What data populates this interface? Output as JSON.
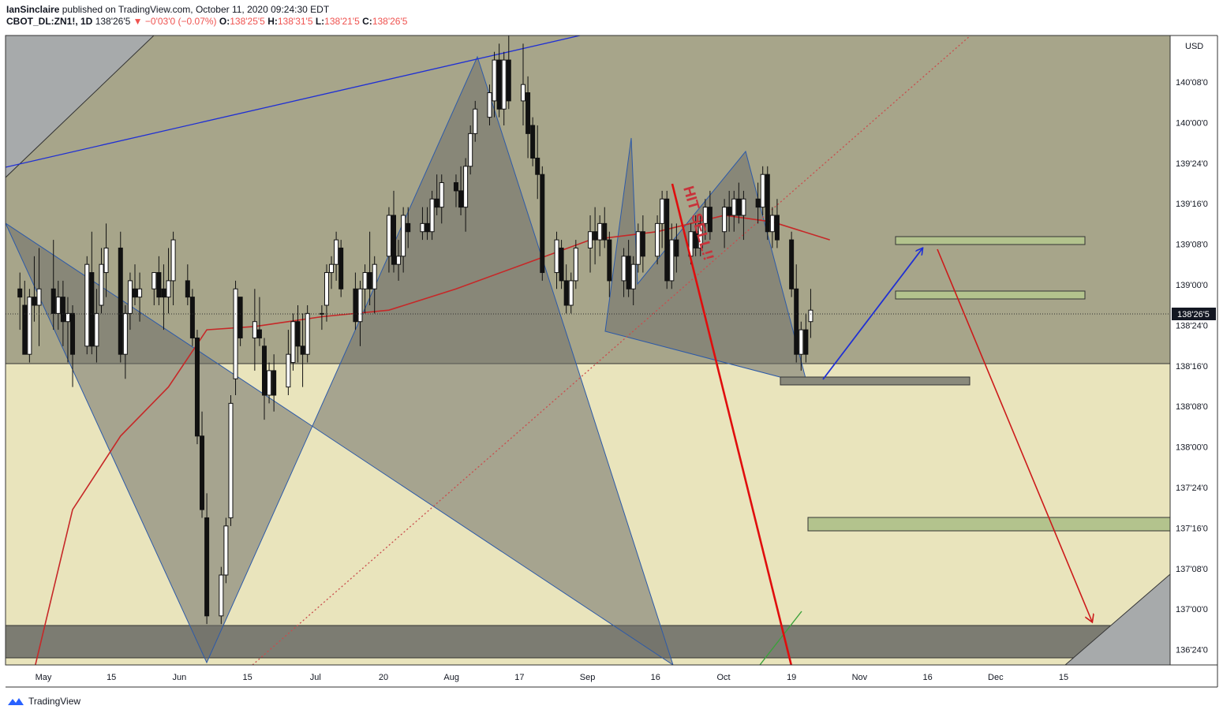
{
  "header": {
    "author": "IanSinclaire",
    "published_text": "published on TradingView.com, October 11, 2020 09:24:30 EDT",
    "symbol": "CBOT_DL:ZN1!, 1D",
    "last": "138'26'5",
    "change_arrow": "▼",
    "change": "−0'03'0 (−0.07%)",
    "o_label": "O:",
    "o_value": "138'25'5",
    "h_label": "H:",
    "h_value": "138'31'5",
    "l_label": "L:",
    "l_value": "138'21'5",
    "c_label": "C:",
    "c_value": "138'26'5"
  },
  "footer": {
    "brand": "TradingView"
  },
  "chart_data": {
    "type": "candlestick",
    "currency": "USD",
    "y_axis_ticks": [
      "136'24'0",
      "137'00'0",
      "137'08'0",
      "137'16'0",
      "137'24'0",
      "138'00'0",
      "138'08'0",
      "138'16'0",
      "138'24'0",
      "139'00'0",
      "139'08'0",
      "139'16'0",
      "139'24'0",
      "140'00'0",
      "140'08'0"
    ],
    "x_axis_ticks": [
      "May",
      "15",
      "Jun",
      "15",
      "Jul",
      "20",
      "Aug",
      "17",
      "Sep",
      "16",
      "Oct",
      "19",
      "Nov",
      "16",
      "Dec",
      "15"
    ],
    "last_price_label": "138'26'5",
    "ylim": [
      136.65,
      140.5
    ],
    "xlim": [
      "2020-04-24",
      "2020-12-23"
    ],
    "annotation_text": "HIT SELL!!",
    "moving_average": {
      "color": "#c62828",
      "dates": [
        "2020-04-29",
        "2020-05-08",
        "2020-05-18",
        "2020-05-28",
        "2020-06-05",
        "2020-06-15",
        "2020-06-29",
        "2020-07-13",
        "2020-07-27",
        "2020-08-10",
        "2020-08-24",
        "2020-09-07",
        "2020-09-21",
        "2020-10-01",
        "2020-10-13"
      ],
      "values": [
        136.5,
        137.6,
        138.05,
        138.35,
        138.7,
        138.72,
        138.78,
        138.82,
        138.95,
        139.1,
        139.25,
        139.3,
        139.4,
        139.36,
        139.25
      ]
    },
    "candles": [
      {
        "d": "2020-04-27",
        "o": 138.95,
        "h": 139.05,
        "l": 138.7,
        "c": 138.9
      },
      {
        "d": "2020-04-28",
        "o": 138.85,
        "h": 139.0,
        "l": 138.55,
        "c": 138.55
      },
      {
        "d": "2020-04-29",
        "o": 138.55,
        "h": 138.95,
        "l": 138.5,
        "c": 138.9
      },
      {
        "d": "2020-04-30",
        "o": 138.9,
        "h": 139.15,
        "l": 138.75,
        "c": 138.85
      },
      {
        "d": "2020-05-01",
        "o": 138.85,
        "h": 139.2,
        "l": 138.6,
        "c": 138.95
      },
      {
        "d": "2020-05-04",
        "o": 138.95,
        "h": 139.25,
        "l": 138.7,
        "c": 138.8
      },
      {
        "d": "2020-05-05",
        "o": 138.8,
        "h": 139.0,
        "l": 138.7,
        "c": 138.9
      },
      {
        "d": "2020-05-06",
        "o": 138.9,
        "h": 139.0,
        "l": 138.6,
        "c": 138.75
      },
      {
        "d": "2020-05-07",
        "o": 138.75,
        "h": 138.9,
        "l": 138.5,
        "c": 138.8
      },
      {
        "d": "2020-05-08",
        "o": 138.8,
        "h": 138.85,
        "l": 138.35,
        "c": 138.55
      },
      {
        "d": "2020-05-11",
        "o": 138.6,
        "h": 139.15,
        "l": 138.55,
        "c": 139.1
      },
      {
        "d": "2020-05-12",
        "o": 139.05,
        "h": 139.3,
        "l": 138.55,
        "c": 138.6
      },
      {
        "d": "2020-05-13",
        "o": 138.6,
        "h": 138.95,
        "l": 138.5,
        "c": 138.8
      },
      {
        "d": "2020-05-14",
        "o": 138.85,
        "h": 139.2,
        "l": 138.8,
        "c": 139.1
      },
      {
        "d": "2020-05-15",
        "o": 139.05,
        "h": 139.35,
        "l": 138.9,
        "c": 139.2
      },
      {
        "d": "2020-05-18",
        "o": 139.2,
        "h": 139.3,
        "l": 138.5,
        "c": 138.55
      },
      {
        "d": "2020-05-19",
        "o": 138.55,
        "h": 138.85,
        "l": 138.4,
        "c": 138.8
      },
      {
        "d": "2020-05-20",
        "o": 138.8,
        "h": 139.05,
        "l": 138.7,
        "c": 139.0
      },
      {
        "d": "2020-05-21",
        "o": 138.95,
        "h": 139.1,
        "l": 138.85,
        "c": 138.9
      },
      {
        "d": "2020-05-22",
        "o": 138.9,
        "h": 139.05,
        "l": 138.75,
        "c": 138.95
      },
      {
        "d": "2020-05-25",
        "o": 138.95,
        "h": 139.05,
        "l": 138.85,
        "c": 139.05
      },
      {
        "d": "2020-05-26",
        "o": 139.05,
        "h": 139.15,
        "l": 138.85,
        "c": 138.9
      },
      {
        "d": "2020-05-27",
        "o": 138.95,
        "h": 139.1,
        "l": 138.7,
        "c": 138.9
      },
      {
        "d": "2020-05-28",
        "o": 138.9,
        "h": 139.2,
        "l": 138.8,
        "c": 139.0
      },
      {
        "d": "2020-05-29",
        "o": 139.0,
        "h": 139.3,
        "l": 138.85,
        "c": 139.25
      },
      {
        "d": "2020-06-01",
        "o": 139.0,
        "h": 139.1,
        "l": 138.85,
        "c": 138.9
      },
      {
        "d": "2020-06-02",
        "o": 138.9,
        "h": 138.95,
        "l": 138.6,
        "c": 138.65
      },
      {
        "d": "2020-06-03",
        "o": 138.65,
        "h": 138.7,
        "l": 138.0,
        "c": 138.05
      },
      {
        "d": "2020-06-04",
        "o": 138.05,
        "h": 138.2,
        "l": 137.55,
        "c": 137.6
      },
      {
        "d": "2020-06-05",
        "o": 137.55,
        "h": 137.7,
        "l": 136.9,
        "c": 136.95
      },
      {
        "d": "2020-06-08",
        "o": 136.95,
        "h": 137.25,
        "l": 136.9,
        "c": 137.2
      },
      {
        "d": "2020-06-09",
        "o": 137.2,
        "h": 137.55,
        "l": 137.15,
        "c": 137.5
      },
      {
        "d": "2020-06-10",
        "o": 137.55,
        "h": 138.3,
        "l": 137.5,
        "c": 138.25
      },
      {
        "d": "2020-06-11",
        "o": 138.4,
        "h": 139.0,
        "l": 138.3,
        "c": 138.95
      },
      {
        "d": "2020-06-12",
        "o": 138.9,
        "h": 138.9,
        "l": 138.6,
        "c": 138.65
      },
      {
        "d": "2020-06-15",
        "o": 138.65,
        "h": 138.95,
        "l": 138.45,
        "c": 138.75
      },
      {
        "d": "2020-06-16",
        "o": 138.7,
        "h": 138.9,
        "l": 138.6,
        "c": 138.65
      },
      {
        "d": "2020-06-17",
        "o": 138.6,
        "h": 138.65,
        "l": 138.15,
        "c": 138.3
      },
      {
        "d": "2020-06-18",
        "o": 138.3,
        "h": 138.5,
        "l": 138.25,
        "c": 138.45
      },
      {
        "d": "2020-06-19",
        "o": 138.45,
        "h": 138.55,
        "l": 138.2,
        "c": 138.3
      },
      {
        "d": "2020-06-22",
        "o": 138.35,
        "h": 138.7,
        "l": 138.3,
        "c": 138.55
      },
      {
        "d": "2020-06-23",
        "o": 138.5,
        "h": 138.8,
        "l": 138.45,
        "c": 138.75
      },
      {
        "d": "2020-06-24",
        "o": 138.75,
        "h": 138.85,
        "l": 138.5,
        "c": 138.6
      },
      {
        "d": "2020-06-25",
        "o": 138.6,
        "h": 138.8,
        "l": 138.35,
        "c": 138.55
      },
      {
        "d": "2020-06-26",
        "o": 138.55,
        "h": 138.85,
        "l": 138.5,
        "c": 138.8
      },
      {
        "d": "2020-06-29",
        "o": 138.8,
        "h": 138.85,
        "l": 138.7,
        "c": 138.8
      },
      {
        "d": "2020-06-30",
        "o": 138.85,
        "h": 139.1,
        "l": 138.75,
        "c": 139.05
      },
      {
        "d": "2020-07-01",
        "o": 139.05,
        "h": 139.15,
        "l": 138.95,
        "c": 139.1
      },
      {
        "d": "2020-07-02",
        "o": 139.1,
        "h": 139.3,
        "l": 139.0,
        "c": 139.25
      },
      {
        "d": "2020-07-03",
        "o": 139.2,
        "h": 139.25,
        "l": 138.9,
        "c": 138.95
      },
      {
        "d": "2020-07-06",
        "o": 138.95,
        "h": 139.05,
        "l": 138.7,
        "c": 138.75
      },
      {
        "d": "2020-07-07",
        "o": 138.75,
        "h": 139.0,
        "l": 138.6,
        "c": 138.95
      },
      {
        "d": "2020-07-08",
        "o": 138.95,
        "h": 139.1,
        "l": 138.8,
        "c": 139.05
      },
      {
        "d": "2020-07-09",
        "o": 139.05,
        "h": 139.3,
        "l": 138.85,
        "c": 138.95
      },
      {
        "d": "2020-07-10",
        "o": 138.95,
        "h": 139.15,
        "l": 138.8,
        "c": 139.1
      },
      {
        "d": "2020-07-13",
        "o": 139.15,
        "h": 139.45,
        "l": 139.05,
        "c": 139.4
      },
      {
        "d": "2020-07-14",
        "o": 139.4,
        "h": 139.55,
        "l": 139.05,
        "c": 139.1
      },
      {
        "d": "2020-07-15",
        "o": 139.1,
        "h": 139.25,
        "l": 139.0,
        "c": 139.15
      },
      {
        "d": "2020-07-16",
        "o": 139.15,
        "h": 139.45,
        "l": 139.05,
        "c": 139.4
      },
      {
        "d": "2020-07-17",
        "o": 139.35,
        "h": 139.45,
        "l": 139.2,
        "c": 139.3
      },
      {
        "d": "2020-07-20",
        "o": 139.3,
        "h": 139.45,
        "l": 139.25,
        "c": 139.35
      },
      {
        "d": "2020-07-21",
        "o": 139.35,
        "h": 139.45,
        "l": 139.25,
        "c": 139.3
      },
      {
        "d": "2020-07-22",
        "o": 139.3,
        "h": 139.55,
        "l": 139.25,
        "c": 139.5
      },
      {
        "d": "2020-07-23",
        "o": 139.5,
        "h": 139.65,
        "l": 139.4,
        "c": 139.45
      },
      {
        "d": "2020-07-24",
        "o": 139.45,
        "h": 139.65,
        "l": 139.35,
        "c": 139.6
      },
      {
        "d": "2020-07-27",
        "o": 139.6,
        "h": 139.65,
        "l": 139.45,
        "c": 139.55
      },
      {
        "d": "2020-07-28",
        "o": 139.55,
        "h": 139.7,
        "l": 139.4,
        "c": 139.45
      },
      {
        "d": "2020-07-29",
        "o": 139.45,
        "h": 139.75,
        "l": 139.3,
        "c": 139.7
      },
      {
        "d": "2020-07-30",
        "o": 139.7,
        "h": 139.95,
        "l": 139.65,
        "c": 139.9
      },
      {
        "d": "2020-07-31",
        "o": 139.9,
        "h": 140.1,
        "l": 139.85,
        "c": 140.05
      },
      {
        "d": "2020-08-03",
        "o": 140.0,
        "h": 140.2,
        "l": 139.95,
        "c": 140.15
      },
      {
        "d": "2020-08-04",
        "o": 140.1,
        "h": 140.4,
        "l": 140.0,
        "c": 140.35
      },
      {
        "d": "2020-08-05",
        "o": 140.35,
        "h": 140.45,
        "l": 140.0,
        "c": 140.05
      },
      {
        "d": "2020-08-06",
        "o": 140.05,
        "h": 140.4,
        "l": 139.95,
        "c": 140.35
      },
      {
        "d": "2020-08-07",
        "o": 140.35,
        "h": 140.55,
        "l": 140.05,
        "c": 140.1
      },
      {
        "d": "2020-08-10",
        "o": 140.1,
        "h": 140.45,
        "l": 139.95,
        "c": 140.2
      },
      {
        "d": "2020-08-11",
        "o": 140.15,
        "h": 140.25,
        "l": 139.75,
        "c": 139.9
      },
      {
        "d": "2020-08-12",
        "o": 139.95,
        "h": 140.0,
        "l": 139.7,
        "c": 139.75
      },
      {
        "d": "2020-08-13",
        "o": 139.75,
        "h": 139.95,
        "l": 139.5,
        "c": 139.65
      },
      {
        "d": "2020-08-14",
        "o": 139.65,
        "h": 139.7,
        "l": 139.0,
        "c": 139.05
      },
      {
        "d": "2020-08-17",
        "o": 139.05,
        "h": 139.3,
        "l": 138.95,
        "c": 139.25
      },
      {
        "d": "2020-08-18",
        "o": 139.2,
        "h": 139.25,
        "l": 138.95,
        "c": 139.0
      },
      {
        "d": "2020-08-19",
        "o": 139.0,
        "h": 139.1,
        "l": 138.8,
        "c": 138.85
      },
      {
        "d": "2020-08-20",
        "o": 138.85,
        "h": 139.05,
        "l": 138.8,
        "c": 139.0
      },
      {
        "d": "2020-08-21",
        "o": 139.0,
        "h": 139.25,
        "l": 138.95,
        "c": 139.2
      },
      {
        "d": "2020-08-24",
        "o": 139.2,
        "h": 139.4,
        "l": 139.05,
        "c": 139.3
      },
      {
        "d": "2020-08-25",
        "o": 139.3,
        "h": 139.45,
        "l": 139.1,
        "c": 139.25
      },
      {
        "d": "2020-08-26",
        "o": 139.25,
        "h": 139.4,
        "l": 139.15,
        "c": 139.35
      },
      {
        "d": "2020-08-27",
        "o": 139.35,
        "h": 139.45,
        "l": 139.2,
        "c": 139.25
      },
      {
        "d": "2020-08-28",
        "o": 139.25,
        "h": 139.3,
        "l": 138.9,
        "c": 139.0
      },
      {
        "d": "2020-08-31",
        "o": 139.0,
        "h": 139.2,
        "l": 138.9,
        "c": 139.15
      },
      {
        "d": "2020-09-01",
        "o": 139.15,
        "h": 139.25,
        "l": 138.9,
        "c": 138.95
      },
      {
        "d": "2020-09-02",
        "o": 138.95,
        "h": 139.15,
        "l": 138.85,
        "c": 139.1
      },
      {
        "d": "2020-09-03",
        "o": 139.1,
        "h": 139.35,
        "l": 139.05,
        "c": 139.3
      },
      {
        "d": "2020-09-04",
        "o": 139.3,
        "h": 139.4,
        "l": 139.05,
        "c": 139.15
      },
      {
        "d": "2020-09-07",
        "o": 139.15,
        "h": 139.4,
        "l": 139.1,
        "c": 139.35
      },
      {
        "d": "2020-09-08",
        "o": 139.35,
        "h": 139.55,
        "l": 139.2,
        "c": 139.5
      },
      {
        "d": "2020-09-09",
        "o": 139.5,
        "h": 139.55,
        "l": 138.95,
        "c": 139.0
      },
      {
        "d": "2020-09-10",
        "o": 139.0,
        "h": 139.35,
        "l": 138.95,
        "c": 139.25
      },
      {
        "d": "2020-09-11",
        "o": 139.25,
        "h": 139.35,
        "l": 139.05,
        "c": 139.15
      },
      {
        "d": "2020-09-14",
        "o": 139.15,
        "h": 139.35,
        "l": 139.1,
        "c": 139.3
      },
      {
        "d": "2020-09-15",
        "o": 139.3,
        "h": 139.4,
        "l": 139.15,
        "c": 139.2
      },
      {
        "d": "2020-09-16",
        "o": 139.2,
        "h": 139.4,
        "l": 139.15,
        "c": 139.35
      },
      {
        "d": "2020-09-17",
        "o": 139.35,
        "h": 139.5,
        "l": 139.25,
        "c": 139.45
      },
      {
        "d": "2020-09-18",
        "o": 139.45,
        "h": 139.55,
        "l": 139.25,
        "c": 139.3
      },
      {
        "d": "2020-09-21",
        "o": 139.3,
        "h": 139.5,
        "l": 139.2,
        "c": 139.45
      },
      {
        "d": "2020-09-22",
        "o": 139.45,
        "h": 139.55,
        "l": 139.3,
        "c": 139.4
      },
      {
        "d": "2020-09-23",
        "o": 139.4,
        "h": 139.55,
        "l": 139.3,
        "c": 139.5
      },
      {
        "d": "2020-09-24",
        "o": 139.5,
        "h": 139.6,
        "l": 139.35,
        "c": 139.4
      },
      {
        "d": "2020-09-25",
        "o": 139.4,
        "h": 139.55,
        "l": 139.25,
        "c": 139.5
      },
      {
        "d": "2020-09-28",
        "o": 139.5,
        "h": 139.6,
        "l": 139.35,
        "c": 139.45
      },
      {
        "d": "2020-09-29",
        "o": 139.45,
        "h": 139.7,
        "l": 139.4,
        "c": 139.65
      },
      {
        "d": "2020-09-30",
        "o": 139.65,
        "h": 139.7,
        "l": 139.25,
        "c": 139.3
      },
      {
        "d": "2020-10-01",
        "o": 139.3,
        "h": 139.45,
        "l": 139.2,
        "c": 139.4
      },
      {
        "d": "2020-10-02",
        "o": 139.4,
        "h": 139.5,
        "l": 139.2,
        "c": 139.25
      },
      {
        "d": "2020-10-05",
        "o": 139.25,
        "h": 139.3,
        "l": 138.9,
        "c": 138.95
      },
      {
        "d": "2020-10-06",
        "o": 138.95,
        "h": 139.1,
        "l": 138.5,
        "c": 138.55
      },
      {
        "d": "2020-10-07",
        "o": 138.55,
        "h": 138.75,
        "l": 138.45,
        "c": 138.7
      },
      {
        "d": "2020-10-08",
        "o": 138.7,
        "h": 138.8,
        "l": 138.5,
        "c": 138.55
      },
      {
        "d": "2020-10-09",
        "o": 138.75,
        "h": 138.95,
        "l": 138.65,
        "c": 138.82
      }
    ]
  }
}
